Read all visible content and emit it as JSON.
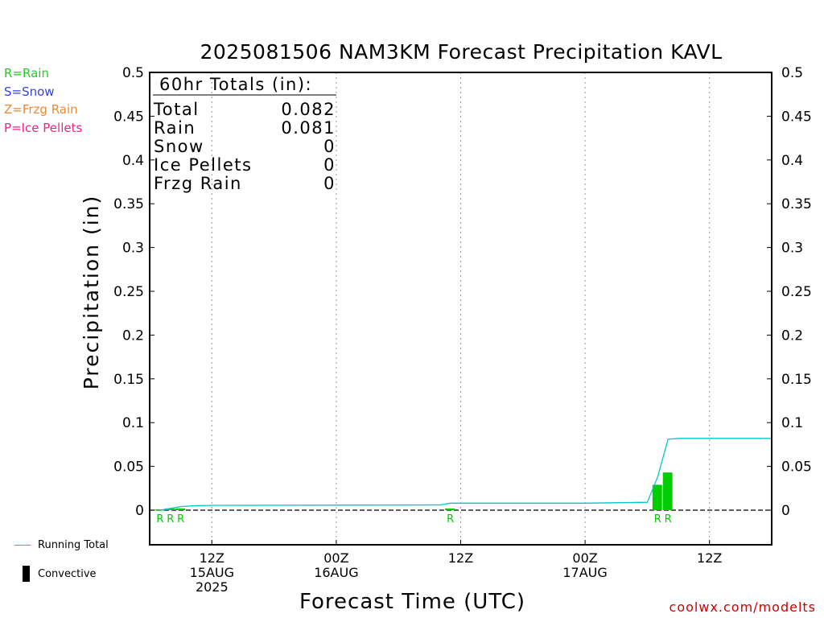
{
  "chart_data": {
    "type": "bar",
    "title": "2025081506 NAM3KM Forecast Precipitation KAVL",
    "xlabel": "Forecast Time (UTC)",
    "ylabel": "Precipitation (in)",
    "ylim": [
      0,
      0.5
    ],
    "y_ticks": [
      "0",
      "0.05",
      "0.1",
      "0.15",
      "0.2",
      "0.25",
      "0.3",
      "0.35",
      "0.4",
      "0.45",
      "0.5"
    ],
    "x_start": "2025-08-15 06Z",
    "x_range_hours": [
      6,
      66
    ],
    "x_ticks": [
      {
        "hour": 12,
        "lines": [
          "12Z",
          "15AUG",
          "2025"
        ]
      },
      {
        "hour": 24,
        "lines": [
          "00Z",
          "16AUG"
        ]
      },
      {
        "hour": 36,
        "lines": [
          "12Z"
        ]
      },
      {
        "hour": 48,
        "lines": [
          "00Z",
          "17AUG"
        ]
      },
      {
        "hour": 60,
        "lines": [
          "12Z"
        ]
      }
    ],
    "grid": true,
    "series": [
      {
        "name": "Rain",
        "type": "bar",
        "color": "#00cc00",
        "bars": [
          {
            "hour": 7,
            "value": 0.001,
            "label": "R"
          },
          {
            "hour": 8,
            "value": 0.002,
            "label": "R"
          },
          {
            "hour": 9,
            "value": 0.002,
            "label": "R"
          },
          {
            "hour": 35,
            "value": 0.002,
            "label": "R"
          },
          {
            "hour": 55,
            "value": 0.029,
            "label": "R"
          },
          {
            "hour": 56,
            "value": 0.043,
            "label": "R"
          }
        ]
      },
      {
        "name": "Running Total",
        "type": "line",
        "color": "#00c8c8",
        "points": [
          [
            7,
            0.0
          ],
          [
            8,
            0.002
          ],
          [
            9,
            0.004
          ],
          [
            10,
            0.005
          ],
          [
            12,
            0.0055
          ],
          [
            34,
            0.006
          ],
          [
            35,
            0.008
          ],
          [
            36,
            0.008
          ],
          [
            48,
            0.008
          ],
          [
            54,
            0.009
          ],
          [
            55,
            0.038
          ],
          [
            56,
            0.081
          ],
          [
            57,
            0.082
          ],
          [
            66,
            0.082
          ]
        ]
      }
    ],
    "totals_box": {
      "heading": "60hr Totals (in):",
      "rows": [
        {
          "label": "Total",
          "value": "0.082"
        },
        {
          "label": "Rain",
          "value": "0.081"
        },
        {
          "label": "Snow",
          "value": "0"
        },
        {
          "label": "Ice Pellets",
          "value": "0"
        },
        {
          "label": "Frzg Rain",
          "value": "0"
        }
      ]
    }
  },
  "legend": {
    "rain": {
      "text": "R=Rain",
      "color": "#22cc22"
    },
    "snow": {
      "text": "S=Snow",
      "color": "#3344dd"
    },
    "frzg": {
      "text": "Z=Frzg Rain",
      "color": "#ee8833"
    },
    "ice": {
      "text": "P=Ice Pellets",
      "color": "#ee2288"
    },
    "running_total": "Running Total",
    "convective": "Convective"
  },
  "credit": "coolwx.com/modelts"
}
